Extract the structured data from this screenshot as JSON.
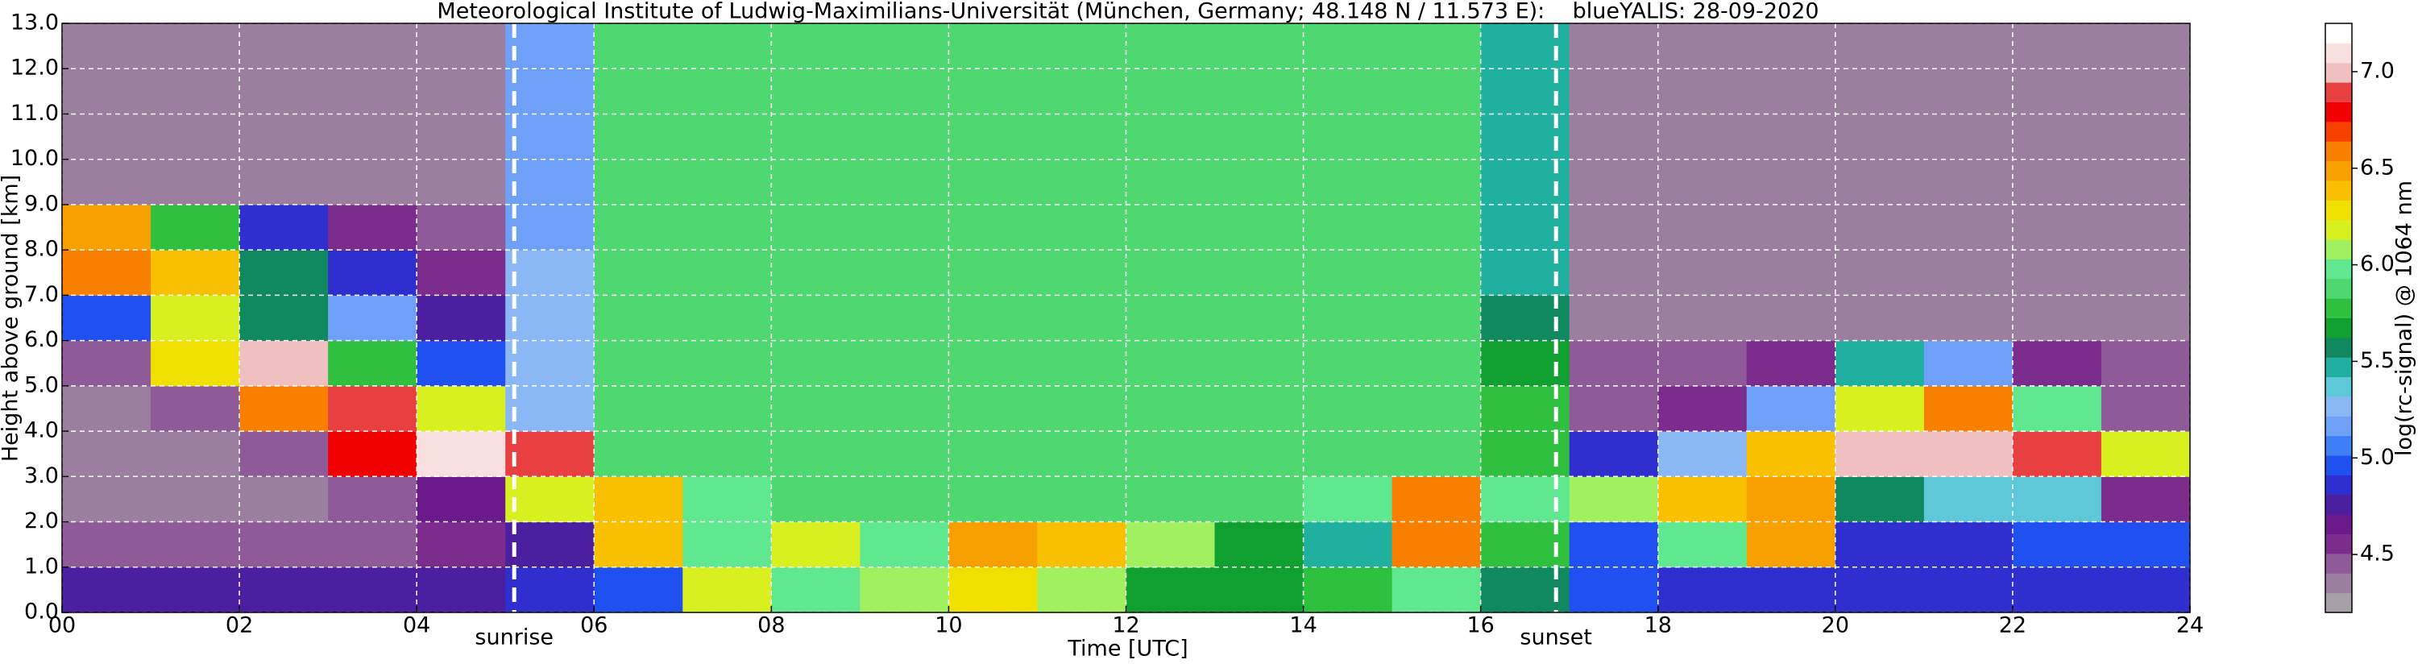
{
  "chart_data": {
    "type": "heatmap",
    "title": "Meteorological Institute of Ludwig-Maximilians-Universität (München, Germany; 48.148 N / 11.573 E):    blueYALIS: 28-09-2020",
    "xlabel": "Time [UTC]",
    "ylabel": "Height above ground [km]",
    "colorbar_label": "log(rc-signal) @ 1064 nm",
    "xlim": [
      0,
      24
    ],
    "ylim": [
      0,
      13
    ],
    "zlim": [
      4.2,
      7.25
    ],
    "xticks": [
      {
        "value": 0,
        "label": "00"
      },
      {
        "value": 2,
        "label": "02"
      },
      {
        "value": 4,
        "label": "04"
      },
      {
        "value": 6,
        "label": "06"
      },
      {
        "value": 8,
        "label": "08"
      },
      10,
      12,
      14,
      16,
      18,
      20,
      22,
      24
    ],
    "yticks": [
      {
        "value": 0,
        "label": "0.0"
      },
      {
        "value": 1,
        "label": "1.0"
      },
      {
        "value": 2,
        "label": "2.0"
      },
      {
        "value": 3,
        "label": "3.0"
      },
      {
        "value": 4,
        "label": "4.0"
      },
      {
        "value": 5,
        "label": "5.0"
      },
      {
        "value": 6,
        "label": "6.0"
      },
      {
        "value": 7,
        "label": "7.0"
      },
      {
        "value": 8,
        "label": "8.0"
      },
      {
        "value": 9,
        "label": "9.0"
      },
      {
        "value": 10,
        "label": "10.0"
      },
      {
        "value": 11,
        "label": "11.0"
      },
      {
        "value": 12,
        "label": "12.0"
      },
      {
        "value": 13,
        "label": "13.0"
      }
    ],
    "zticks": [
      4.5,
      {
        "value": 5,
        "label": "5.0"
      },
      5.5,
      {
        "value": 6,
        "label": "6.0"
      },
      6.5,
      {
        "value": 7,
        "label": "7.0"
      }
    ],
    "grid": true,
    "colorscale": [
      "#a8a0a8",
      "#9c7fa0",
      "#8e5a98",
      "#7c2c8c",
      "#6a1a8a",
      "#4b1fa0",
      "#2f2fd0",
      "#2050f0",
      "#3f7ff5",
      "#6fa0f8",
      "#8ab8f5",
      "#5fc8d8",
      "#20b0a0",
      "#108860",
      "#10a030",
      "#30c040",
      "#50d870",
      "#60e890",
      "#a0f060",
      "#d8f020",
      "#f0e000",
      "#f8c000",
      "#f8a000",
      "#f88000",
      "#f84000",
      "#f00000",
      "#e84040",
      "#f0c0c0",
      "#f8e0e0",
      "#ffffff"
    ],
    "annotations": [
      {
        "x": 5.1,
        "text": "sunrise"
      },
      {
        "x": 16.85,
        "text": "sunset"
      }
    ],
    "z": [
      [
        4.8,
        4.8,
        4.8,
        4.8,
        4.8,
        4.9,
        5.0,
        6.2,
        6.0,
        6.1,
        6.3,
        6.1,
        5.7,
        5.7,
        5.8,
        6.0,
        5.6,
        5.0,
        4.9,
        4.9,
        4.9,
        4.9,
        4.9,
        4.9
      ],
      [
        4.5,
        4.5,
        4.5,
        4.5,
        4.6,
        4.8,
        6.4,
        6.0,
        6.2,
        6.0,
        6.5,
        6.4,
        6.1,
        5.7,
        5.5,
        6.6,
        5.8,
        5.0,
        6.0,
        6.5,
        4.9,
        4.9,
        5.0,
        5.0
      ],
      [
        4.4,
        4.4,
        4.4,
        4.5,
        4.7,
        6.2,
        6.4,
        6.0,
        5.9,
        5.9,
        5.9,
        5.9,
        5.9,
        5.9,
        6.0,
        6.6,
        6.0,
        6.1,
        6.4,
        6.5,
        5.6,
        5.4,
        5.4,
        4.6
      ],
      [
        4.4,
        4.4,
        4.5,
        6.8,
        7.1,
        6.9,
        5.9,
        5.9,
        5.9,
        5.9,
        5.9,
        5.9,
        5.9,
        5.9,
        5.9,
        5.9,
        5.8,
        4.9,
        5.3,
        6.4,
        7.0,
        7.0,
        6.9,
        6.2
      ],
      [
        4.4,
        4.5,
        6.6,
        6.9,
        6.2,
        5.3,
        5.9,
        5.9,
        5.9,
        5.9,
        5.9,
        5.9,
        5.9,
        5.9,
        5.9,
        5.9,
        5.8,
        4.5,
        4.6,
        5.2,
        6.2,
        6.6,
        6.0,
        4.5
      ],
      [
        4.5,
        6.3,
        7.0,
        5.8,
        5.0,
        5.3,
        5.9,
        5.9,
        5.9,
        5.9,
        5.9,
        5.9,
        5.9,
        5.9,
        5.9,
        5.9,
        5.7,
        4.5,
        4.5,
        4.6,
        5.5,
        5.2,
        4.6,
        4.5
      ],
      [
        5.0,
        6.2,
        5.6,
        5.2,
        4.8,
        5.3,
        5.9,
        5.9,
        5.9,
        5.9,
        5.9,
        5.9,
        5.9,
        5.9,
        5.9,
        5.9,
        5.6,
        4.4,
        4.4,
        4.4,
        4.4,
        4.4,
        4.4,
        4.4
      ],
      [
        6.6,
        6.4,
        5.6,
        4.9,
        4.6,
        5.3,
        5.9,
        5.9,
        5.9,
        5.9,
        5.9,
        5.9,
        5.9,
        5.9,
        5.9,
        5.9,
        5.5,
        4.4,
        4.4,
        4.4,
        4.4,
        4.4,
        4.4,
        4.4
      ],
      [
        6.5,
        5.8,
        4.9,
        4.6,
        4.5,
        5.2,
        5.9,
        5.9,
        5.9,
        5.9,
        5.9,
        5.9,
        5.9,
        5.9,
        5.9,
        5.9,
        5.5,
        4.4,
        4.4,
        4.4,
        4.4,
        4.4,
        4.4,
        4.4
      ],
      [
        4.4,
        4.4,
        4.4,
        4.4,
        4.4,
        5.2,
        5.9,
        5.9,
        5.9,
        5.9,
        5.9,
        5.9,
        5.9,
        5.9,
        5.9,
        5.9,
        5.5,
        4.4,
        4.4,
        4.4,
        4.4,
        4.4,
        4.4,
        4.4
      ],
      [
        4.4,
        4.4,
        4.4,
        4.4,
        4.4,
        5.2,
        5.9,
        5.9,
        5.9,
        5.9,
        5.9,
        5.9,
        5.9,
        5.9,
        5.9,
        5.9,
        5.5,
        4.4,
        4.4,
        4.4,
        4.4,
        4.4,
        4.4,
        4.4
      ],
      [
        4.4,
        4.4,
        4.4,
        4.4,
        4.4,
        5.2,
        5.9,
        5.9,
        5.9,
        5.9,
        5.9,
        5.9,
        5.9,
        5.9,
        5.9,
        5.9,
        5.5,
        4.4,
        4.4,
        4.4,
        4.4,
        4.4,
        4.4,
        4.4
      ],
      [
        4.4,
        4.4,
        4.4,
        4.4,
        4.4,
        5.2,
        5.9,
        5.9,
        5.9,
        5.9,
        5.9,
        5.9,
        5.9,
        5.9,
        5.9,
        5.9,
        5.5,
        4.4,
        4.4,
        4.4,
        4.4,
        4.4,
        4.4,
        4.4
      ]
    ]
  }
}
